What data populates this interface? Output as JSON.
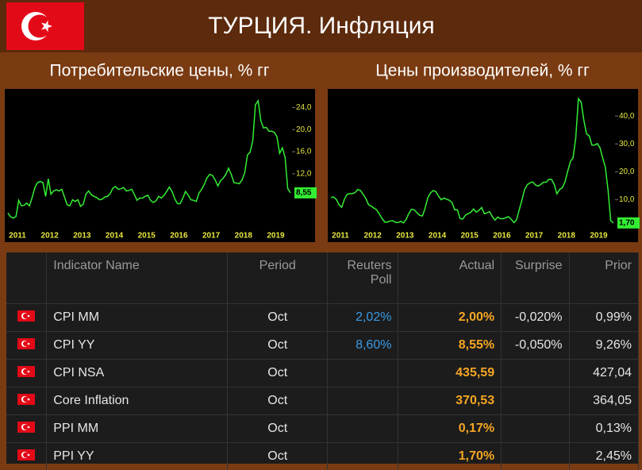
{
  "header": {
    "title": "ТУРЦИЯ. Инфляция"
  },
  "chart_data": [
    {
      "type": "line",
      "title": "Потребительские цены, % гг",
      "categories": [
        "2011",
        null,
        null,
        null,
        null,
        null,
        null,
        null,
        null,
        null,
        null,
        null,
        "2012",
        null,
        null,
        null,
        null,
        null,
        null,
        null,
        null,
        null,
        null,
        null,
        "2013",
        null,
        null,
        null,
        null,
        null,
        null,
        null,
        null,
        null,
        null,
        null,
        "2014",
        null,
        null,
        null,
        null,
        null,
        null,
        null,
        null,
        null,
        null,
        null,
        "2015",
        null,
        null,
        null,
        null,
        null,
        null,
        null,
        null,
        null,
        null,
        null,
        "2016",
        null,
        null,
        null,
        null,
        null,
        null,
        null,
        null,
        null,
        null,
        null,
        "2017",
        null,
        null,
        null,
        null,
        null,
        null,
        null,
        null,
        null,
        null,
        null,
        "2018",
        null,
        null,
        null,
        null,
        null,
        null,
        null,
        null,
        null,
        null,
        null,
        "2019",
        null,
        null,
        null,
        null,
        null,
        null,
        null,
        null,
        null
      ],
      "values": [
        4.9,
        4.2,
        4.0,
        4.3,
        7.2,
        6.2,
        6.3,
        6.7,
        6.2,
        7.7,
        9.5,
        10.4,
        10.6,
        10.4,
        7.9,
        11.1,
        8.3,
        8.9,
        9.1,
        8.9,
        9.2,
        7.8,
        6.4,
        6.2,
        7.3,
        7.0,
        7.3,
        6.1,
        6.5,
        8.3,
        8.9,
        8.2,
        7.9,
        7.7,
        7.3,
        7.4,
        7.8,
        7.9,
        8.4,
        9.4,
        9.7,
        9.2,
        9.3,
        9.5,
        8.9,
        9.0,
        9.2,
        8.2,
        7.2,
        7.6,
        7.6,
        7.9,
        8.1,
        7.2,
        6.8,
        7.1,
        7.9,
        7.6,
        8.1,
        8.8,
        9.6,
        8.8,
        7.5,
        6.6,
        6.6,
        7.6,
        8.8,
        8.1,
        7.3,
        7.2,
        7.0,
        8.5,
        9.2,
        10.1,
        11.3,
        11.9,
        11.7,
        10.9,
        9.8,
        10.7,
        11.2,
        11.9,
        13.0,
        11.9,
        10.4,
        10.3,
        10.2,
        10.9,
        12.2,
        15.4,
        15.9,
        17.9,
        24.5,
        25.2,
        21.6,
        20.3,
        20.4,
        19.7,
        19.7,
        19.5,
        18.7,
        15.7,
        16.7,
        15.0,
        9.3,
        8.55
      ],
      "value_labels": [
        null,
        null,
        null,
        null,
        null,
        null,
        null,
        null,
        null,
        null,
        null,
        null,
        null,
        null,
        null,
        null,
        null,
        null,
        null,
        null,
        null,
        null,
        null,
        null,
        null,
        null,
        null,
        null,
        null,
        null,
        null,
        null,
        null,
        null,
        null,
        null,
        null,
        null,
        null,
        null,
        null,
        null,
        null,
        null,
        null,
        null,
        null,
        null,
        null,
        null,
        null,
        null,
        null,
        null,
        null,
        null,
        null,
        null,
        null,
        null,
        null,
        null,
        null,
        null,
        null,
        null,
        null,
        null,
        null,
        null,
        null,
        null,
        null,
        null,
        null,
        null,
        null,
        null,
        null,
        null,
        null,
        null,
        null,
        null,
        null,
        null,
        null,
        null,
        null,
        null,
        null,
        null,
        null,
        null,
        null,
        null,
        null,
        null,
        null,
        null,
        null,
        null,
        null,
        null,
        null,
        "8,55"
      ],
      "color": "#33ee33",
      "ylim": [
        2.5,
        26.5
      ],
      "yticks": [
        {
          "value": 12,
          "label": "12,0"
        },
        {
          "value": 16,
          "label": "16,0"
        },
        {
          "value": 20,
          "label": "20,0"
        },
        {
          "value": 24,
          "label": "24,0"
        }
      ]
    },
    {
      "type": "line",
      "title": "Цены производителей, % гг",
      "categories": [
        "2011",
        null,
        null,
        null,
        null,
        null,
        null,
        null,
        null,
        null,
        null,
        null,
        "2012",
        null,
        null,
        null,
        null,
        null,
        null,
        null,
        null,
        null,
        null,
        null,
        "2013",
        null,
        null,
        null,
        null,
        null,
        null,
        null,
        null,
        null,
        null,
        null,
        "2014",
        null,
        null,
        null,
        null,
        null,
        null,
        null,
        null,
        null,
        null,
        null,
        "2015",
        null,
        null,
        null,
        null,
        null,
        null,
        null,
        null,
        null,
        null,
        null,
        "2016",
        null,
        null,
        null,
        null,
        null,
        null,
        null,
        null,
        null,
        null,
        null,
        "2017",
        null,
        null,
        null,
        null,
        null,
        null,
        null,
        null,
        null,
        null,
        null,
        "2018",
        null,
        null,
        null,
        null,
        null,
        null,
        null,
        null,
        null,
        null,
        null,
        "2019",
        null,
        null,
        null,
        null,
        null,
        null,
        null,
        null,
        null
      ],
      "values": [
        10.8,
        11.0,
        10.1,
        8.2,
        7.3,
        10.2,
        11.9,
        12.2,
        12.2,
        12.6,
        13.7,
        13.3,
        11.9,
        10.4,
        8.2,
        7.7,
        7.0,
        6.4,
        4.9,
        3.3,
        2.0,
        2.0,
        2.4,
        2.5,
        1.9,
        1.8,
        2.3,
        1.7,
        3.0,
        5.2,
        6.6,
        6.4,
        5.3,
        4.4,
        4.2,
        7.0,
        10.7,
        12.4,
        13.3,
        12.9,
        11.3,
        10.0,
        10.6,
        10.2,
        9.8,
        9.0,
        6.4,
        6.4,
        3.3,
        3.1,
        4.5,
        5.0,
        5.5,
        6.7,
        5.6,
        6.2,
        7.2,
        5.0,
        5.3,
        5.7,
        4.0,
        2.7,
        3.8,
        3.2,
        3.2,
        3.6,
        3.9,
        3.0,
        1.8,
        2.8,
        6.4,
        9.9,
        13.7,
        15.4,
        16.1,
        16.4,
        15.3,
        14.9,
        15.5,
        16.3,
        16.3,
        17.3,
        17.3,
        15.5,
        12.1,
        13.7,
        14.3,
        16.4,
        20.2,
        23.7,
        25.0,
        32.1,
        46.2,
        45.0,
        38.5,
        33.6,
        32.9,
        29.6,
        29.6,
        30.1,
        28.7,
        25.0,
        21.7,
        13.5,
        2.5,
        1.7
      ],
      "value_labels": [
        null,
        null,
        null,
        null,
        null,
        null,
        null,
        null,
        null,
        null,
        null,
        null,
        null,
        null,
        null,
        null,
        null,
        null,
        null,
        null,
        null,
        null,
        null,
        null,
        null,
        null,
        null,
        null,
        null,
        null,
        null,
        null,
        null,
        null,
        null,
        null,
        null,
        null,
        null,
        null,
        null,
        null,
        null,
        null,
        null,
        null,
        null,
        null,
        null,
        null,
        null,
        null,
        null,
        null,
        null,
        null,
        null,
        null,
        null,
        null,
        null,
        null,
        null,
        null,
        null,
        null,
        null,
        null,
        null,
        null,
        null,
        null,
        null,
        null,
        null,
        null,
        null,
        null,
        null,
        null,
        null,
        null,
        null,
        null,
        null,
        null,
        null,
        null,
        null,
        null,
        null,
        null,
        null,
        null,
        null,
        null,
        null,
        null,
        null,
        null,
        null,
        null,
        null,
        null,
        null,
        "1,70"
      ],
      "color": "#33ee33",
      "ylim": [
        0.5,
        48
      ],
      "yticks": [
        {
          "value": 10,
          "label": "10,0"
        },
        {
          "value": 20,
          "label": "20,0"
        },
        {
          "value": 30,
          "label": "30,0"
        },
        {
          "value": 40,
          "label": "40,0"
        }
      ]
    }
  ],
  "table": {
    "headers": [
      "Indicator Name",
      "Period",
      "Reuters Poll",
      "Actual",
      "Surprise",
      "Prior"
    ],
    "rows": [
      [
        "CPI MM",
        "Oct",
        "2,02%",
        "2,00%",
        "-0,020%",
        "0,99%"
      ],
      [
        "CPI YY",
        "Oct",
        "8,60%",
        "8,55%",
        "-0,050%",
        "9,26%"
      ],
      [
        "CPI NSA",
        "Oct",
        null,
        "435,59",
        null,
        "427,04"
      ],
      [
        "Core Inflation",
        "Oct",
        null,
        "370,53",
        null,
        "364,05"
      ],
      [
        "PPI MM",
        "Oct",
        null,
        "0,17%",
        null,
        "0,13%"
      ],
      [
        "PPI YY",
        "Oct",
        null,
        "1,70%",
        null,
        "2,45%"
      ]
    ]
  }
}
